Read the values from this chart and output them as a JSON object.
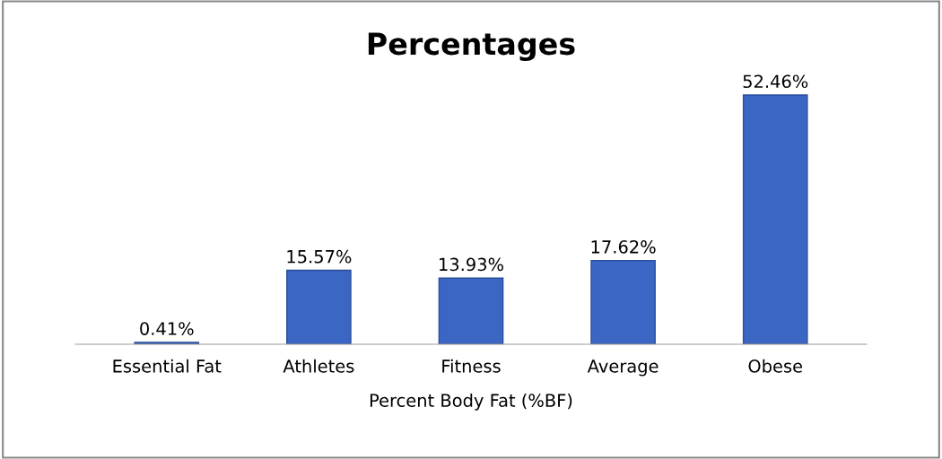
{
  "chart_data": {
    "type": "bar",
    "title": "Percentages",
    "xlabel": "Percent Body Fat (%BF)",
    "categories": [
      "Essential Fat",
      "Athletes",
      "Fitness",
      "Average",
      "Obese"
    ],
    "values": [
      0.41,
      15.57,
      13.93,
      17.62,
      52.46
    ],
    "value_labels": [
      "0.41%",
      "15.57%",
      "13.93%",
      "17.62%",
      "52.46%"
    ],
    "color": "#3b66c4",
    "grid": false,
    "legend": false,
    "tick_labels": "x"
  }
}
